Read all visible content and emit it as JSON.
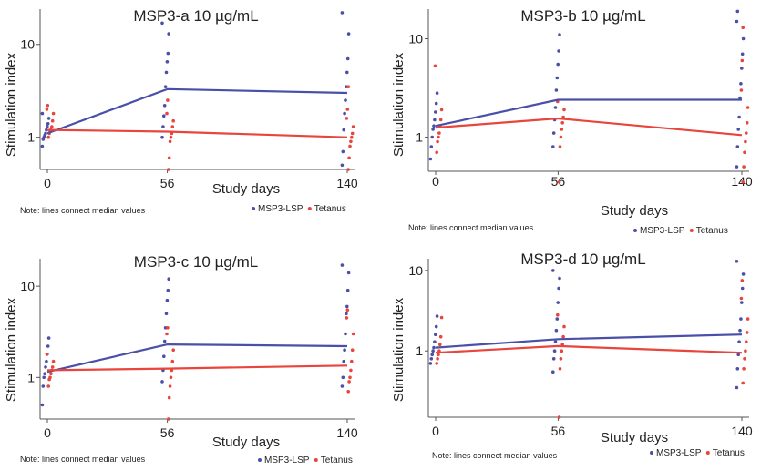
{
  "chart_data": [
    {
      "type": "line",
      "title": "MSP3-a 10 µg/mL",
      "xlabel": "Study days",
      "ylabel": "Stimulation index",
      "x": [
        0,
        56,
        140
      ],
      "x_tick_labels": [
        "0",
        "56",
        "140"
      ],
      "y_scale": "log",
      "y_tick_labels": [
        "1",
        "10"
      ],
      "ylim": [
        0.45,
        24
      ],
      "note": "Note: lines connect median values",
      "series": [
        {
          "name": "MSP3-LSP",
          "color": "#4a4fa8",
          "median": [
            1.1,
            3.3,
            3.0
          ],
          "points": [
            [
              0,
              [
                0.8,
                0.95,
                1.0,
                1.05,
                1.1,
                1.2,
                1.3,
                1.4,
                1.6,
                1.8
              ]
            ],
            [
              56,
              [
                1.0,
                1.3,
                1.7,
                2.2,
                3.5,
                5.0,
                6.5,
                8.0,
                13,
                17
              ]
            ],
            [
              140,
              [
                0.5,
                0.7,
                1.2,
                1.8,
                2.5,
                3.5,
                5.0,
                7.0,
                13,
                22
              ]
            ]
          ]
        },
        {
          "name": "Tetanus",
          "color": "#e8453c",
          "median": [
            1.2,
            1.15,
            1.0
          ],
          "points": [
            [
              0,
              [
                1.0,
                1.1,
                1.15,
                1.2,
                1.3,
                1.5,
                1.8,
                2.0,
                2.2
              ]
            ],
            [
              56,
              [
                0.45,
                0.6,
                0.9,
                1.0,
                1.1,
                1.3,
                1.5,
                1.8,
                2.5
              ]
            ],
            [
              140,
              [
                0.45,
                0.6,
                0.8,
                0.9,
                1.0,
                1.1,
                1.3,
                1.6,
                2.0,
                3.5
              ]
            ]
          ]
        }
      ]
    },
    {
      "type": "line",
      "title": "MSP3-b 10 µg/mL",
      "xlabel": "Study days",
      "ylabel": "Stimulation index",
      "x": [
        0,
        56,
        140
      ],
      "x_tick_labels": [
        "0",
        "56",
        "140"
      ],
      "y_scale": "log",
      "y_tick_labels": [
        "1",
        "10"
      ],
      "ylim": [
        0.45,
        20
      ],
      "note": "Note: lines connect median values",
      "series": [
        {
          "name": "MSP3-LSP",
          "color": "#4a4fa8",
          "median": [
            1.3,
            2.4,
            2.4
          ],
          "points": [
            [
              0,
              [
                0.6,
                0.8,
                1.0,
                1.2,
                1.3,
                1.5,
                1.8,
                2.2,
                2.8
              ]
            ],
            [
              56,
              [
                0.8,
                1.1,
                1.5,
                2.0,
                3.0,
                4.0,
                5.5,
                7.5,
                11
              ]
            ],
            [
              140,
              [
                0.5,
                0.8,
                1.2,
                1.6,
                2.5,
                3.5,
                5.0,
                7.0,
                10,
                15,
                19
              ]
            ]
          ]
        },
        {
          "name": "Tetanus",
          "color": "#e8453c",
          "median": [
            1.25,
            1.55,
            1.05
          ],
          "points": [
            [
              0,
              [
                0.7,
                0.9,
                1.0,
                1.1,
                1.3,
                1.5,
                1.9,
                5.3
              ]
            ],
            [
              56,
              [
                0.35,
                0.8,
                1.0,
                1.2,
                1.4,
                1.6,
                1.9,
                2.3
              ]
            ],
            [
              140,
              [
                0.35,
                0.5,
                0.7,
                0.9,
                1.1,
                1.4,
                2.0,
                3.0,
                6.0,
                13
              ]
            ]
          ]
        }
      ]
    },
    {
      "type": "line",
      "title": "MSP3-c 10 µg/mL",
      "xlabel": "Study days",
      "ylabel": "Stimulation index",
      "x": [
        0,
        56,
        140
      ],
      "x_tick_labels": [
        "0",
        "56",
        "140"
      ],
      "y_scale": "log",
      "y_tick_labels": [
        "1",
        "10"
      ],
      "ylim": [
        0.35,
        20
      ],
      "note": "Note: lines connect median values",
      "series": [
        {
          "name": "MSP3-LSP",
          "color": "#4a4fa8",
          "median": [
            1.15,
            2.3,
            2.2
          ],
          "points": [
            [
              0,
              [
                0.5,
                0.8,
                1.0,
                1.1,
                1.3,
                1.5,
                1.8,
                2.2,
                2.7
              ]
            ],
            [
              56,
              [
                0.9,
                1.2,
                1.7,
                2.5,
                3.5,
                5.0,
                7.0,
                9.0,
                12
              ]
            ],
            [
              140,
              [
                0.8,
                1.0,
                1.5,
                2.0,
                3.0,
                5.0,
                6.0,
                9.0,
                14,
                17
              ]
            ]
          ]
        },
        {
          "name": "Tetanus",
          "color": "#e8453c",
          "median": [
            1.2,
            1.25,
            1.35
          ],
          "points": [
            [
              0,
              [
                0.8,
                0.95,
                1.0,
                1.1,
                1.2,
                1.3,
                1.5,
                1.8
              ]
            ],
            [
              56,
              [
                0.35,
                0.6,
                0.8,
                1.0,
                1.2,
                1.5,
                2.0,
                3.0,
                3.5
              ]
            ],
            [
              140,
              [
                0.7,
                0.9,
                1.0,
                1.2,
                1.5,
                2.0,
                3.0,
                4.5,
                5.5
              ]
            ]
          ]
        }
      ]
    },
    {
      "type": "line",
      "title": "MSP3-d 10 µg/mL",
      "xlabel": "Study days",
      "ylabel": "Stimulation index",
      "x": [
        0,
        56,
        140
      ],
      "x_tick_labels": [
        "0",
        "56",
        "140"
      ],
      "y_scale": "log",
      "y_tick_labels": [
        "1",
        "10"
      ],
      "ylim": [
        0.15,
        14
      ],
      "note": "Note: lines connect median values",
      "series": [
        {
          "name": "MSP3-LSP",
          "color": "#4a4fa8",
          "median": [
            1.1,
            1.4,
            1.6
          ],
          "points": [
            [
              0,
              [
                0.7,
                0.8,
                0.9,
                1.0,
                1.1,
                1.3,
                1.6,
                2.0,
                2.7
              ]
            ],
            [
              56,
              [
                0.55,
                0.8,
                1.0,
                1.3,
                1.8,
                2.5,
                4.0,
                6.0,
                8.0,
                10
              ]
            ],
            [
              140,
              [
                0.35,
                0.6,
                0.9,
                1.3,
                1.8,
                2.5,
                4.0,
                6.0,
                9.0,
                13
              ]
            ]
          ]
        },
        {
          "name": "Tetanus",
          "color": "#e8453c",
          "median": [
            0.95,
            1.15,
            0.95
          ],
          "points": [
            [
              0,
              [
                0.7,
                0.8,
                0.9,
                1.0,
                1.2,
                1.5,
                2.6
              ]
            ],
            [
              56,
              [
                0.15,
                0.6,
                0.8,
                1.0,
                1.2,
                1.5,
                2.0,
                2.8
              ]
            ],
            [
              140,
              [
                0.4,
                0.6,
                0.8,
                1.0,
                1.3,
                1.7,
                2.5,
                4.5,
                7.5
              ]
            ]
          ]
        }
      ]
    }
  ]
}
